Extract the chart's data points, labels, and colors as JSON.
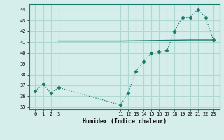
{
  "line1_x": [
    0,
    1,
    2,
    3,
    11,
    12,
    13,
    14,
    15,
    16,
    17,
    18,
    19,
    20,
    21,
    22,
    23
  ],
  "line1_y": [
    36.5,
    37.1,
    36.3,
    36.8,
    35.2,
    36.3,
    38.3,
    39.2,
    40.0,
    40.1,
    40.2,
    42.0,
    43.3,
    43.3,
    44.0,
    43.3,
    41.2
  ],
  "line2_x": [
    3,
    11,
    20,
    23
  ],
  "line2_y": [
    41.1,
    41.1,
    41.2,
    41.2
  ],
  "line_color": "#1a7a6e",
  "bg_color": "#d6eeeb",
  "grid_color": "#b0d8d2",
  "xlabel": "Humidex (Indice chaleur)",
  "xticks": [
    0,
    1,
    2,
    3,
    11,
    12,
    13,
    14,
    15,
    16,
    17,
    18,
    19,
    20,
    21,
    22,
    23
  ],
  "yticks": [
    35,
    36,
    37,
    38,
    39,
    40,
    41,
    42,
    43,
    44
  ],
  "ylim": [
    34.8,
    44.5
  ],
  "xlim": [
    -0.8,
    23.8
  ]
}
